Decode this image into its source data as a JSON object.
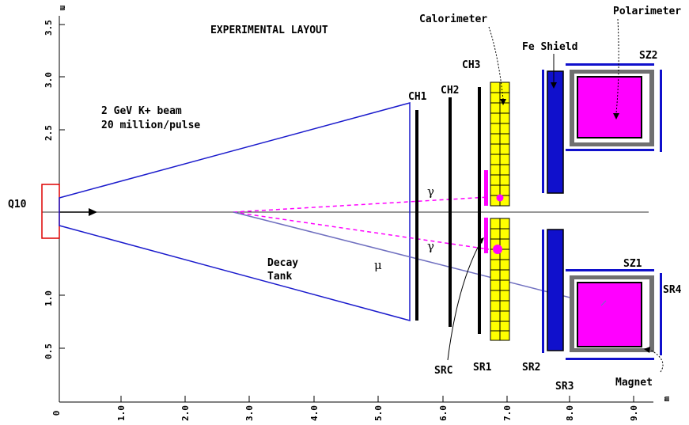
{
  "title": "EXPERIMENTAL LAYOUT",
  "axes": {
    "x_unit": "m",
    "y_unit": "m",
    "x_ticks": [
      "0",
      "1.0",
      "2.0",
      "3.0",
      "4.0",
      "5.0",
      "6.0",
      "7.0",
      "8.0",
      "9.0"
    ],
    "y_ticks": [
      "3.5",
      "3.0",
      "2.5",
      "1.0",
      "0.5"
    ]
  },
  "beam": {
    "line1": "2 GeV K+ beam",
    "line2": "20 million/pulse"
  },
  "labels": {
    "q10": "Q10",
    "decay_tank_1": "Decay",
    "decay_tank_2": "Tank",
    "ch1": "CH1",
    "ch2": "CH2",
    "ch3": "CH3",
    "calorimeter": "Calorimeter",
    "polarimeter": "Polarimeter",
    "fe_shield": "Fe Shield",
    "sz1": "SZ1",
    "sz2": "SZ2",
    "sr1": "SR1",
    "sr2": "SR2",
    "sr3": "SR3",
    "sr4": "SR4",
    "src": "SRC",
    "magnet": "Magnet",
    "gamma1": "γ",
    "gamma2": "γ",
    "mu": "μ"
  },
  "colors": {
    "beamline": "#1a1acc",
    "q10": "#dd0000",
    "magenta": "#ff00ff",
    "calorimeter": "#ffff00",
    "shield": "#1010cc",
    "yoke": "#606060",
    "muon_track": "#7070c0"
  }
}
